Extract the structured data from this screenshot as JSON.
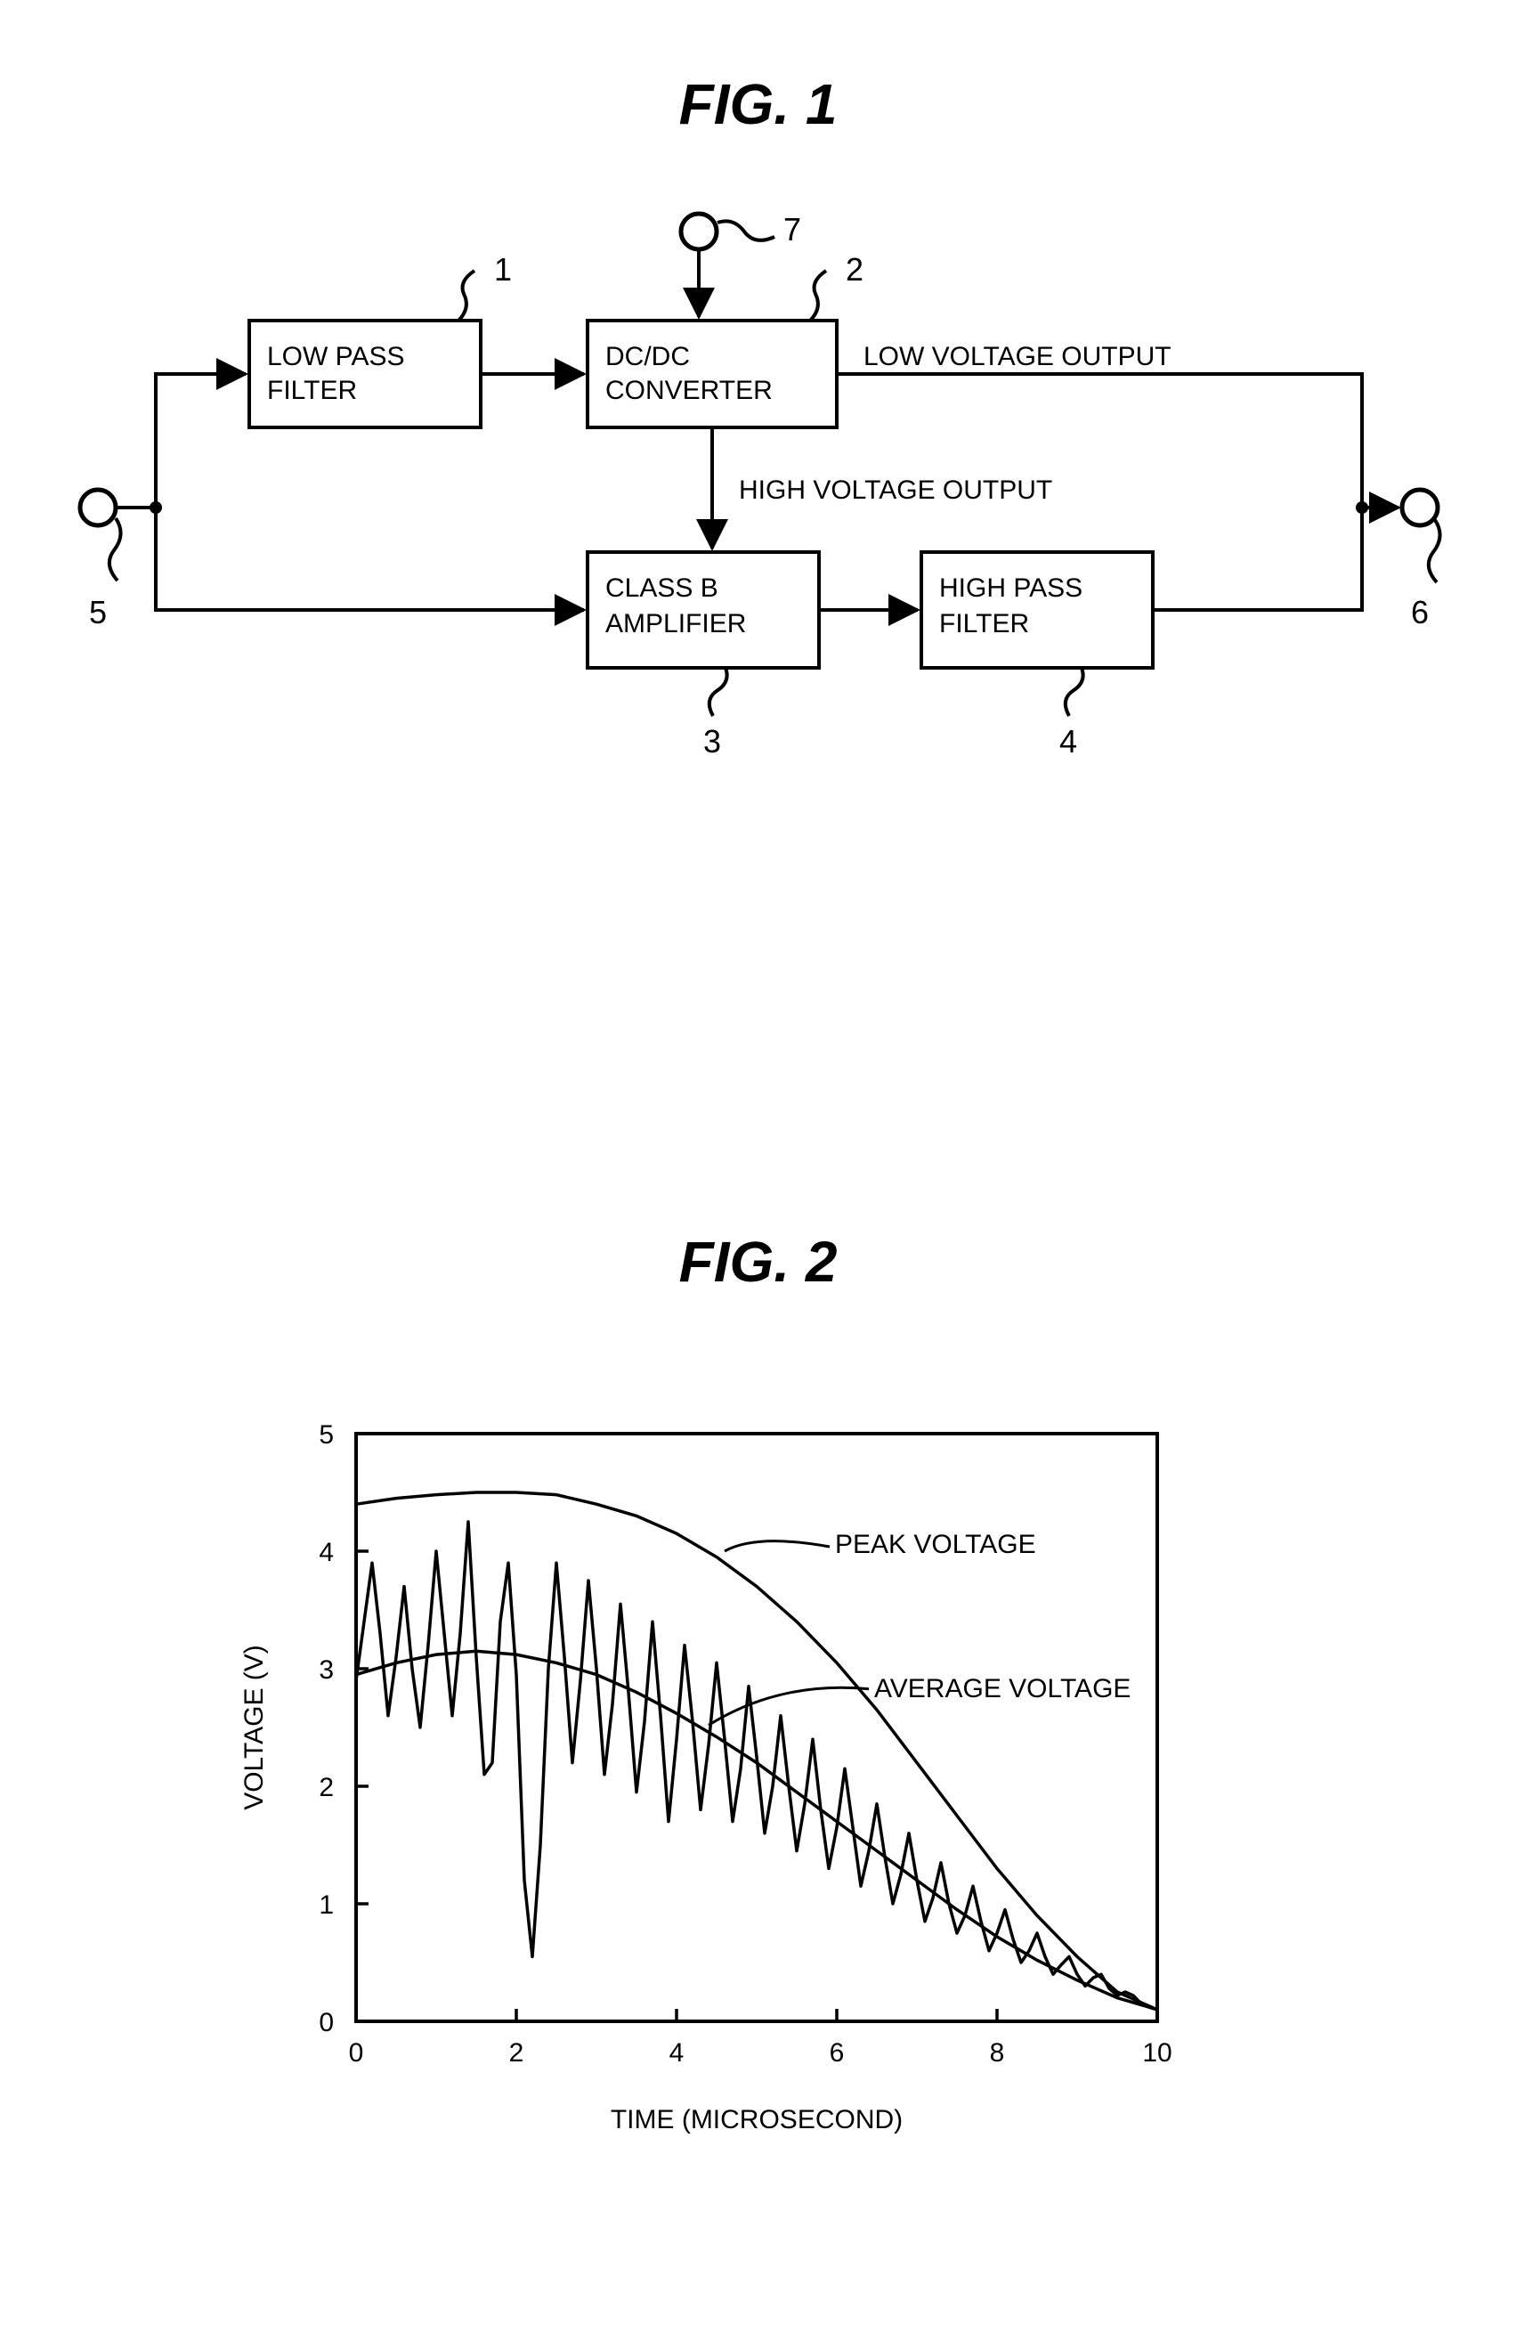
{
  "fig1": {
    "title": "FIG. 1",
    "title_fontsize": 64,
    "blocks": {
      "lpf": {
        "label": "LOW PASS\nFILTER",
        "ref": "1"
      },
      "dcdc": {
        "label": "DC/DC\nCONVERTER",
        "ref": "2"
      },
      "classb": {
        "label": "CLASS B\nAMPLIFIER",
        "ref": "3"
      },
      "hpf": {
        "label": "HIGH PASS\nFILTER",
        "ref": "4"
      }
    },
    "terminals": {
      "in": {
        "ref": "5"
      },
      "out": {
        "ref": "6"
      },
      "top": {
        "ref": "7"
      }
    },
    "signals": {
      "low_voltage": "LOW VOLTAGE OUTPUT",
      "high_voltage": "HIGH VOLTAGE OUTPUT"
    },
    "style": {
      "block_stroke": "#000000",
      "block_stroke_width": 4,
      "line_stroke_width": 4,
      "fontsize": 30,
      "ref_fontsize": 36,
      "terminal_radius": 20,
      "terminal_stroke_width": 5
    }
  },
  "fig2": {
    "title": "FIG. 2",
    "title_fontsize": 64,
    "type": "line",
    "xlabel": "TIME (MICROSECOND)",
    "ylabel": "VOLTAGE (V)",
    "xlim": [
      0,
      10
    ],
    "ylim": [
      0,
      5
    ],
    "xtick_step": 2,
    "ytick_step": 1,
    "series": {
      "peak": {
        "label": "PEAK VOLTAGE",
        "points": [
          [
            0,
            4.4
          ],
          [
            0.5,
            4.45
          ],
          [
            1.0,
            4.48
          ],
          [
            1.5,
            4.5
          ],
          [
            2.0,
            4.5
          ],
          [
            2.5,
            4.48
          ],
          [
            3.0,
            4.4
          ],
          [
            3.5,
            4.3
          ],
          [
            4.0,
            4.15
          ],
          [
            4.5,
            3.95
          ],
          [
            5.0,
            3.7
          ],
          [
            5.5,
            3.4
          ],
          [
            6.0,
            3.05
          ],
          [
            6.5,
            2.65
          ],
          [
            7.0,
            2.2
          ],
          [
            7.5,
            1.75
          ],
          [
            8.0,
            1.3
          ],
          [
            8.5,
            0.9
          ],
          [
            9.0,
            0.55
          ],
          [
            9.5,
            0.25
          ],
          [
            10.0,
            0.1
          ]
        ],
        "label_anchor": [
          5.2,
          4.0
        ]
      },
      "average": {
        "label": "AVERAGE VOLTAGE",
        "points": [
          [
            0,
            2.95
          ],
          [
            0.5,
            3.05
          ],
          [
            1.0,
            3.12
          ],
          [
            1.5,
            3.15
          ],
          [
            2.0,
            3.12
          ],
          [
            2.5,
            3.05
          ],
          [
            3.0,
            2.95
          ],
          [
            3.5,
            2.8
          ],
          [
            4.0,
            2.62
          ],
          [
            4.5,
            2.42
          ],
          [
            5.0,
            2.2
          ],
          [
            5.5,
            1.95
          ],
          [
            6.0,
            1.7
          ],
          [
            6.5,
            1.45
          ],
          [
            7.0,
            1.2
          ],
          [
            7.5,
            0.95
          ],
          [
            8.0,
            0.72
          ],
          [
            8.5,
            0.52
          ],
          [
            9.0,
            0.35
          ],
          [
            9.5,
            0.2
          ],
          [
            10.0,
            0.1
          ]
        ],
        "label_anchor": [
          5.8,
          2.85
        ]
      },
      "signal": {
        "points": [
          [
            0.0,
            2.9
          ],
          [
            0.1,
            3.4
          ],
          [
            0.2,
            3.9
          ],
          [
            0.3,
            3.3
          ],
          [
            0.4,
            2.6
          ],
          [
            0.5,
            3.1
          ],
          [
            0.6,
            3.7
          ],
          [
            0.7,
            3.0
          ],
          [
            0.8,
            2.5
          ],
          [
            0.9,
            3.2
          ],
          [
            1.0,
            4.0
          ],
          [
            1.1,
            3.3
          ],
          [
            1.2,
            2.6
          ],
          [
            1.3,
            3.3
          ],
          [
            1.4,
            4.25
          ],
          [
            1.5,
            3.1
          ],
          [
            1.6,
            2.1
          ],
          [
            1.7,
            2.2
          ],
          [
            1.8,
            3.4
          ],
          [
            1.9,
            3.9
          ],
          [
            2.0,
            2.95
          ],
          [
            2.1,
            1.2
          ],
          [
            2.2,
            0.55
          ],
          [
            2.3,
            1.5
          ],
          [
            2.4,
            3.0
          ],
          [
            2.5,
            3.9
          ],
          [
            2.6,
            3.1
          ],
          [
            2.7,
            2.2
          ],
          [
            2.8,
            2.9
          ],
          [
            2.9,
            3.75
          ],
          [
            3.0,
            3.0
          ],
          [
            3.1,
            2.1
          ],
          [
            3.2,
            2.7
          ],
          [
            3.3,
            3.55
          ],
          [
            3.4,
            2.8
          ],
          [
            3.5,
            1.95
          ],
          [
            3.6,
            2.55
          ],
          [
            3.7,
            3.4
          ],
          [
            3.8,
            2.6
          ],
          [
            3.9,
            1.7
          ],
          [
            4.0,
            2.4
          ],
          [
            4.1,
            3.2
          ],
          [
            4.2,
            2.55
          ],
          [
            4.3,
            1.8
          ],
          [
            4.4,
            2.35
          ],
          [
            4.5,
            3.05
          ],
          [
            4.6,
            2.4
          ],
          [
            4.7,
            1.7
          ],
          [
            4.8,
            2.15
          ],
          [
            4.9,
            2.85
          ],
          [
            5.0,
            2.25
          ],
          [
            5.1,
            1.6
          ],
          [
            5.2,
            2.0
          ],
          [
            5.3,
            2.6
          ],
          [
            5.4,
            2.0
          ],
          [
            5.5,
            1.45
          ],
          [
            5.6,
            1.85
          ],
          [
            5.7,
            2.4
          ],
          [
            5.8,
            1.8
          ],
          [
            5.9,
            1.3
          ],
          [
            6.0,
            1.65
          ],
          [
            6.1,
            2.15
          ],
          [
            6.2,
            1.65
          ],
          [
            6.3,
            1.15
          ],
          [
            6.4,
            1.45
          ],
          [
            6.5,
            1.85
          ],
          [
            6.6,
            1.4
          ],
          [
            6.7,
            1.0
          ],
          [
            6.8,
            1.25
          ],
          [
            6.9,
            1.6
          ],
          [
            7.0,
            1.2
          ],
          [
            7.1,
            0.85
          ],
          [
            7.2,
            1.05
          ],
          [
            7.3,
            1.35
          ],
          [
            7.4,
            1.0
          ],
          [
            7.5,
            0.75
          ],
          [
            7.6,
            0.9
          ],
          [
            7.7,
            1.15
          ],
          [
            7.8,
            0.85
          ],
          [
            7.9,
            0.6
          ],
          [
            8.0,
            0.75
          ],
          [
            8.1,
            0.95
          ],
          [
            8.2,
            0.7
          ],
          [
            8.3,
            0.5
          ],
          [
            8.4,
            0.6
          ],
          [
            8.5,
            0.75
          ],
          [
            8.6,
            0.55
          ],
          [
            8.7,
            0.4
          ],
          [
            8.8,
            0.48
          ],
          [
            8.9,
            0.55
          ],
          [
            9.0,
            0.4
          ],
          [
            9.1,
            0.3
          ],
          [
            9.2,
            0.37
          ],
          [
            9.3,
            0.4
          ],
          [
            9.4,
            0.28
          ],
          [
            9.5,
            0.22
          ],
          [
            9.6,
            0.25
          ],
          [
            9.7,
            0.22
          ],
          [
            9.8,
            0.15
          ],
          [
            9.9,
            0.12
          ],
          [
            10.0,
            0.1
          ]
        ]
      }
    },
    "style": {
      "plot_stroke": "#000000",
      "plot_stroke_width": 3.5,
      "axis_stroke_width": 4,
      "tick_len": 14,
      "tick_stroke_width": 3.5,
      "fontsize_axis": 30,
      "fontsize_tick": 30,
      "fontsize_annot": 30,
      "background": "#ffffff"
    }
  }
}
